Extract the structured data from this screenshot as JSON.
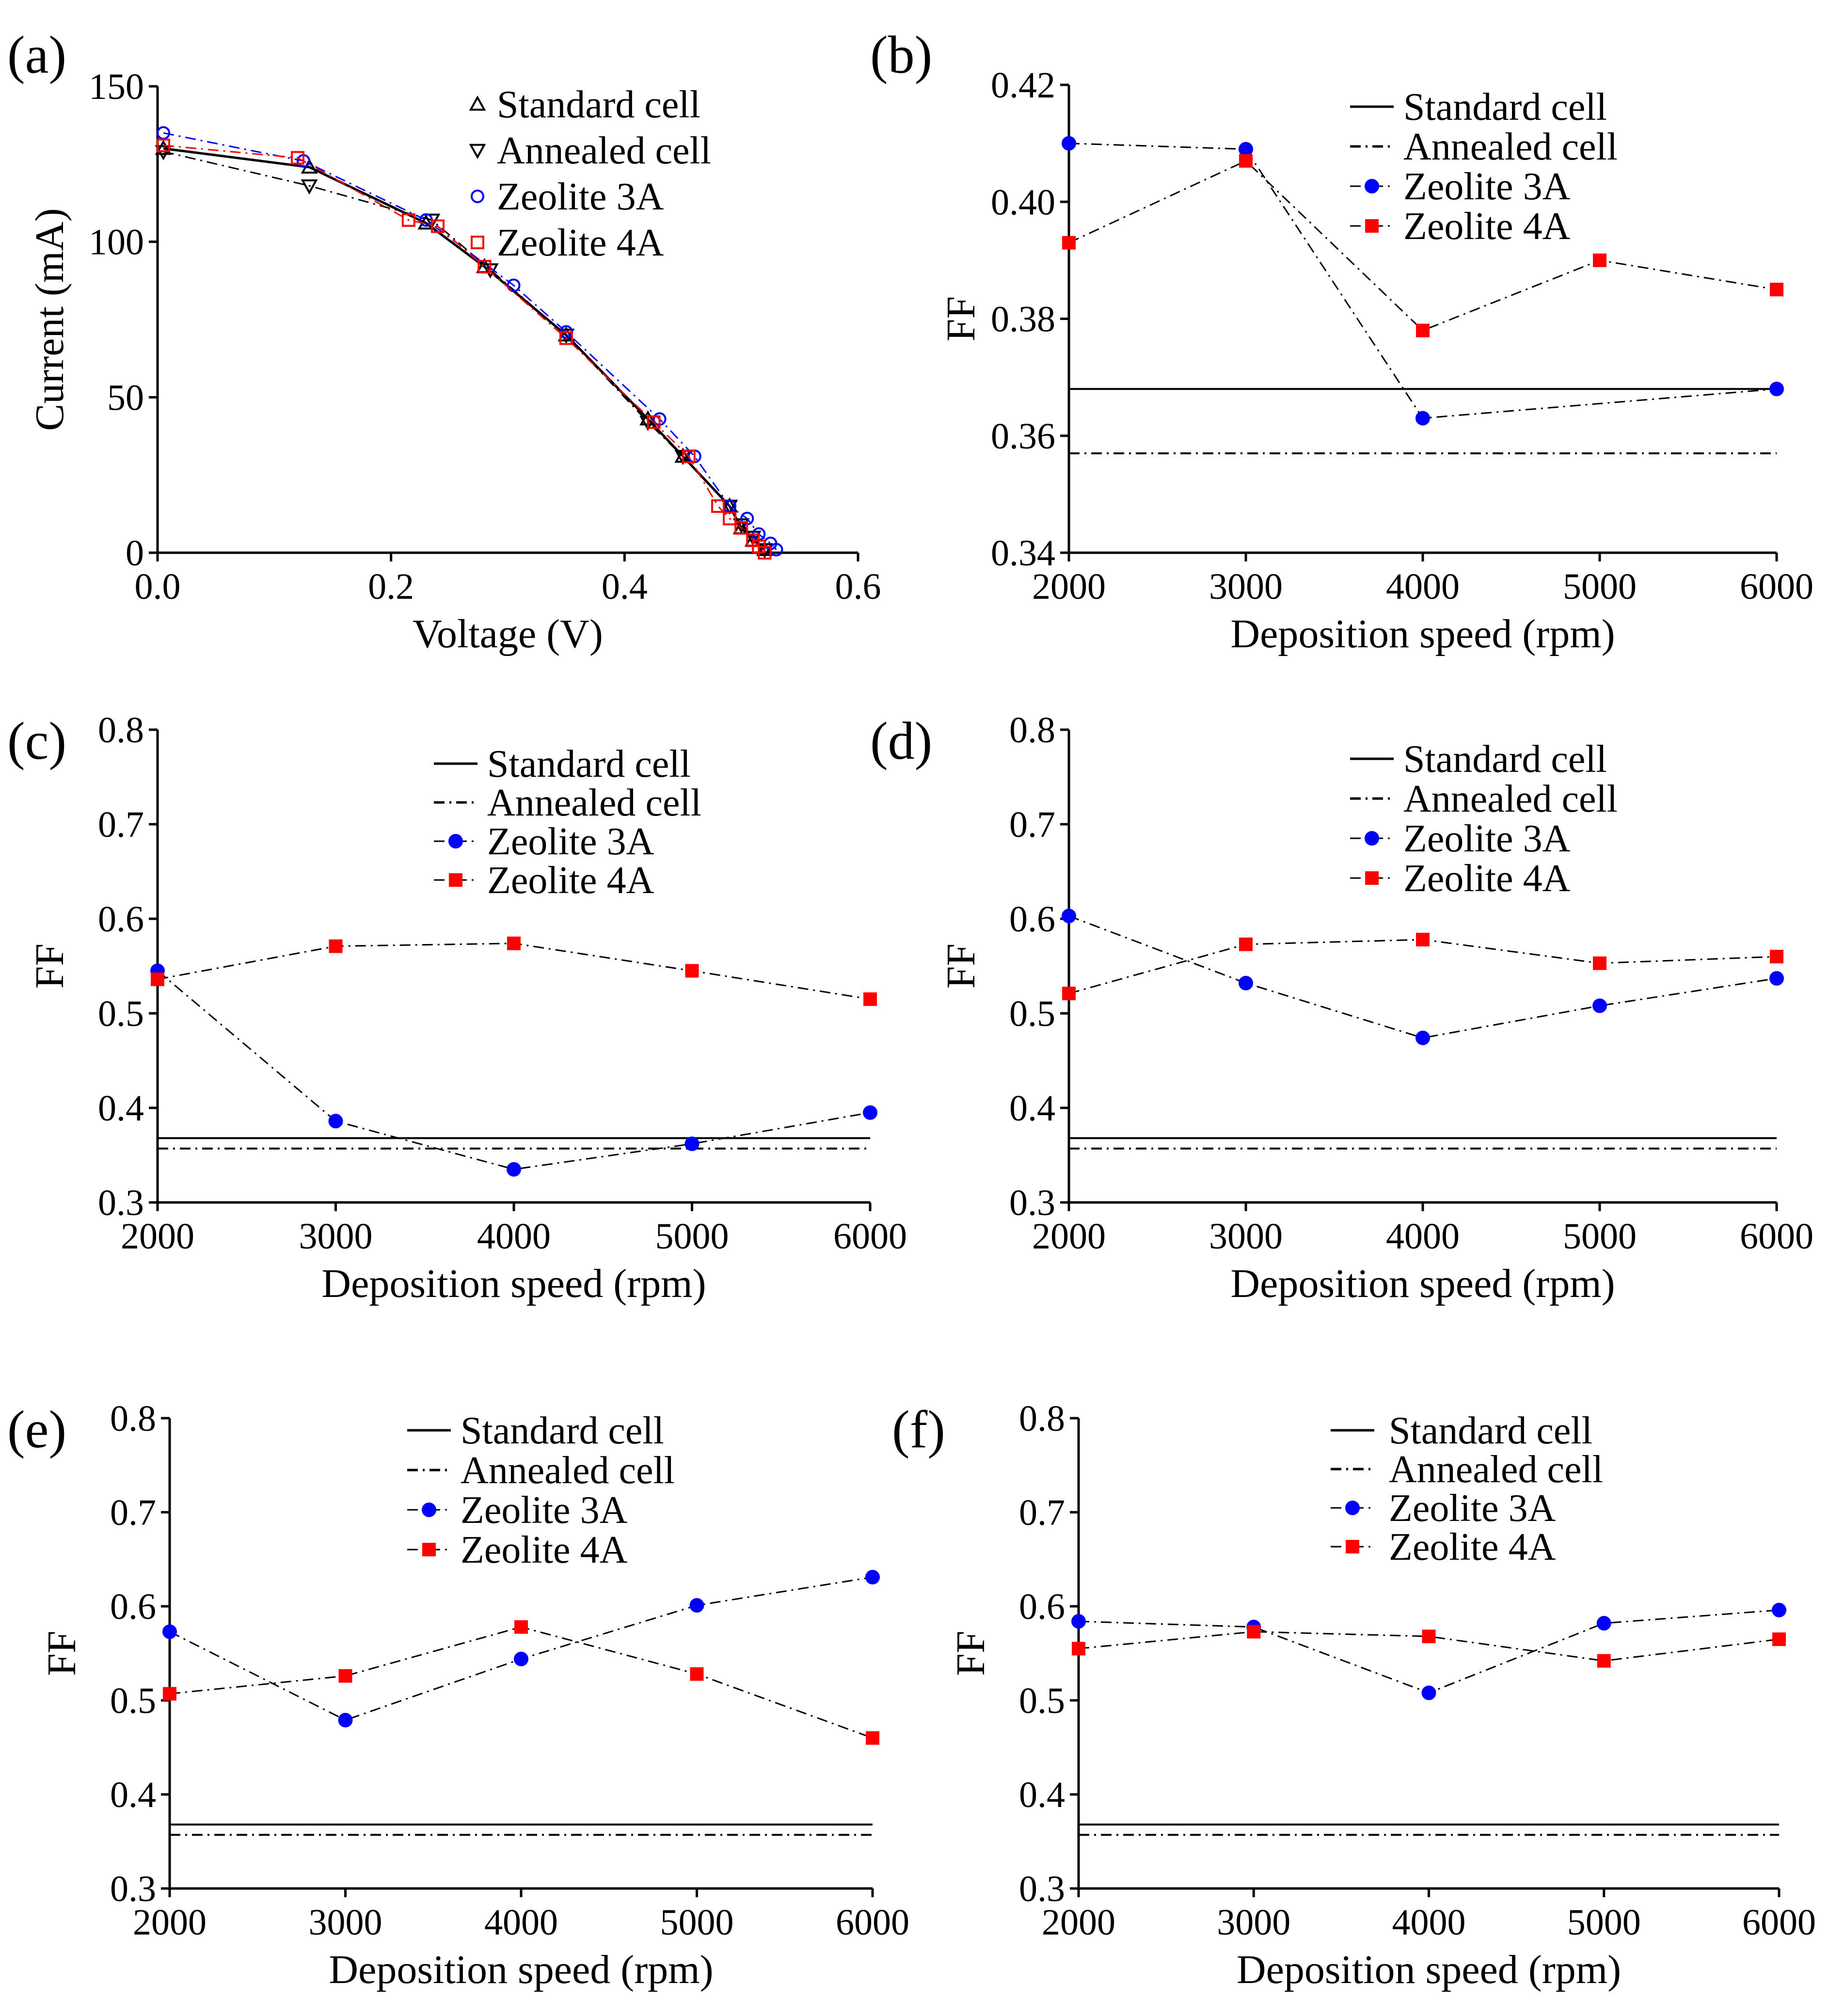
{
  "chart_data": [
    {
      "panel": "(a)",
      "type": "line",
      "xlabel": "Voltage (V)",
      "ylabel": "Current (mA)",
      "xlim": [
        0,
        0.6
      ],
      "ylim": [
        0,
        150
      ],
      "xticks": [
        0.0,
        0.2,
        0.4,
        0.6
      ],
      "xtick_labels": [
        "0.0",
        "0.2",
        "0.4",
        "0.6"
      ],
      "yticks": [
        0,
        50,
        100,
        150
      ],
      "ytick_labels": [
        "0",
        "50",
        "100",
        "150"
      ],
      "legend_position": "top-right",
      "series": [
        {
          "name": "Standard  cell",
          "marker": "up-triangle-open",
          "color": "#000000",
          "dash": "solid",
          "x": [
            0.005,
            0.13,
            0.23,
            0.28,
            0.35,
            0.42,
            0.45,
            0.49,
            0.5,
            0.51,
            0.52
          ],
          "y": [
            130,
            124,
            106,
            92,
            70,
            43,
            31,
            15,
            8,
            4,
            1
          ]
        },
        {
          "name": "Annealed cell",
          "marker": "down-triangle-open",
          "color": "#000000",
          "dash": "dashdot",
          "x": [
            0.005,
            0.13,
            0.235,
            0.285,
            0.35,
            0.42,
            0.45,
            0.49,
            0.5,
            0.51,
            0.52
          ],
          "y": [
            129,
            118,
            107,
            91,
            70,
            42,
            31,
            15,
            9,
            5,
            1
          ]
        },
        {
          "name": "Zeolite 3A",
          "marker": "circle-open",
          "color": "#0000ff",
          "dash": "dashdot",
          "x": [
            0.005,
            0.125,
            0.23,
            0.305,
            0.35,
            0.43,
            0.46,
            0.49,
            0.505,
            0.515,
            0.525,
            0.53
          ],
          "y": [
            135,
            126,
            107,
            86,
            71,
            43,
            31,
            15,
            11,
            6,
            3,
            1
          ]
        },
        {
          "name": "Zeolite 4A",
          "marker": "square-open",
          "color": "#ff0000",
          "dash": "dashdot",
          "x": [
            0.005,
            0.12,
            0.215,
            0.24,
            0.28,
            0.35,
            0.425,
            0.455,
            0.48,
            0.49,
            0.5,
            0.51,
            0.515,
            0.52
          ],
          "y": [
            131,
            127,
            107,
            105,
            92,
            69,
            42,
            31,
            15,
            11,
            8,
            4,
            2,
            0
          ]
        }
      ]
    },
    {
      "panel": "(b)",
      "type": "line",
      "xlabel": "Deposition speed (rpm)",
      "ylabel": "FF",
      "xlim": [
        2000,
        6000
      ],
      "ylim": [
        0.34,
        0.42
      ],
      "xticks": [
        2000,
        3000,
        4000,
        5000,
        6000
      ],
      "xtick_labels": [
        "2000",
        "3000",
        "4000",
        "5000",
        "6000"
      ],
      "yticks": [
        0.34,
        0.36,
        0.38,
        0.4,
        0.42
      ],
      "ytick_labels": [
        "0.34",
        "0.36",
        "0.38",
        "0.40",
        "0.42"
      ],
      "legend_position": "top-right",
      "reference_lines": [
        {
          "name": "Standard  cell",
          "y": 0.368,
          "dash": "solid",
          "color": "#000000"
        },
        {
          "name": "Annealed cell",
          "y": 0.357,
          "dash": "dashdot",
          "color": "#000000"
        }
      ],
      "series": [
        {
          "name": "Zeolite 3A",
          "marker": "circle",
          "color": "#0000ff",
          "x": [
            2000,
            3000,
            4000,
            6000
          ],
          "y": [
            0.41,
            0.409,
            0.363,
            0.368
          ]
        },
        {
          "name": "Zeolite 4A",
          "marker": "square",
          "color": "#ff0000",
          "x": [
            2000,
            3000,
            4000,
            5000,
            6000
          ],
          "y": [
            0.393,
            0.407,
            0.378,
            0.39,
            0.385
          ]
        }
      ]
    },
    {
      "panel": "(c)",
      "type": "line",
      "xlabel": "Deposition speed (rpm)",
      "ylabel": "FF",
      "xlim": [
        2000,
        6000
      ],
      "ylim": [
        0.3,
        0.8
      ],
      "xticks": [
        2000,
        3000,
        4000,
        5000,
        6000
      ],
      "xtick_labels": [
        "2000",
        "3000",
        "4000",
        "5000",
        "6000"
      ],
      "yticks": [
        0.3,
        0.4,
        0.5,
        0.6,
        0.7,
        0.8
      ],
      "ytick_labels": [
        "0.3",
        "0.4",
        "0.5",
        "0.6",
        "0.7",
        "0.8"
      ],
      "legend_position": "top-right",
      "reference_lines": [
        {
          "name": "Standard  cell",
          "y": 0.368,
          "dash": "solid",
          "color": "#000000"
        },
        {
          "name": "Annealed cell",
          "y": 0.357,
          "dash": "dashdot",
          "color": "#000000"
        }
      ],
      "series": [
        {
          "name": "Zeolite 3A",
          "marker": "circle",
          "color": "#0000ff",
          "x": [
            2000,
            3000,
            4000,
            5000,
            6000
          ],
          "y": [
            0.545,
            0.386,
            0.335,
            0.362,
            0.395
          ]
        },
        {
          "name": "Zeolite 4A",
          "marker": "square",
          "color": "#ff0000",
          "x": [
            2000,
            3000,
            4000,
            5000,
            6000
          ],
          "y": [
            0.536,
            0.571,
            0.574,
            0.545,
            0.515
          ]
        }
      ]
    },
    {
      "panel": "(d)",
      "type": "line",
      "xlabel": "Deposition speed (rpm)",
      "ylabel": "FF",
      "xlim": [
        2000,
        6000
      ],
      "ylim": [
        0.3,
        0.8
      ],
      "xticks": [
        2000,
        3000,
        4000,
        5000,
        6000
      ],
      "xtick_labels": [
        "2000",
        "3000",
        "4000",
        "5000",
        "6000"
      ],
      "yticks": [
        0.3,
        0.4,
        0.5,
        0.6,
        0.7,
        0.8
      ],
      "ytick_labels": [
        "0.3",
        "0.4",
        "0.5",
        "0.6",
        "0.7",
        "0.8"
      ],
      "legend_position": "top-right",
      "reference_lines": [
        {
          "name": "Standard  cell",
          "y": 0.368,
          "dash": "solid",
          "color": "#000000"
        },
        {
          "name": "Annealed cell",
          "y": 0.357,
          "dash": "dashdot",
          "color": "#000000"
        }
      ],
      "series": [
        {
          "name": "Zeolite 3A",
          "marker": "circle",
          "color": "#0000ff",
          "x": [
            2000,
            3000,
            4000,
            5000,
            6000
          ],
          "y": [
            0.603,
            0.532,
            0.474,
            0.508,
            0.537
          ]
        },
        {
          "name": "Zeolite 4A",
          "marker": "square",
          "color": "#ff0000",
          "x": [
            2000,
            3000,
            4000,
            5000,
            6000
          ],
          "y": [
            0.521,
            0.573,
            0.578,
            0.553,
            0.56
          ]
        }
      ]
    },
    {
      "panel": "(e)",
      "type": "line",
      "xlabel": "Deposition speed (rpm)",
      "ylabel": "FF",
      "xlim": [
        2000,
        6000
      ],
      "ylim": [
        0.3,
        0.8
      ],
      "xticks": [
        2000,
        3000,
        4000,
        5000,
        6000
      ],
      "xtick_labels": [
        "2000",
        "3000",
        "4000",
        "5000",
        "6000"
      ],
      "yticks": [
        0.3,
        0.4,
        0.5,
        0.6,
        0.7,
        0.8
      ],
      "ytick_labels": [
        "0.3",
        "0.4",
        "0.5",
        "0.6",
        "0.7",
        "0.8"
      ],
      "legend_position": "top-right",
      "reference_lines": [
        {
          "name": "Standard  cell",
          "y": 0.368,
          "dash": "solid",
          "color": "#000000"
        },
        {
          "name": "Annealed cell",
          "y": 0.357,
          "dash": "dashdot",
          "color": "#000000"
        }
      ],
      "series": [
        {
          "name": "Zeolite 3A",
          "marker": "circle",
          "color": "#0000ff",
          "x": [
            2000,
            3000,
            4000,
            5000,
            6000
          ],
          "y": [
            0.573,
            0.479,
            0.544,
            0.601,
            0.631
          ]
        },
        {
          "name": "Zeolite 4A",
          "marker": "square",
          "color": "#ff0000",
          "x": [
            2000,
            3000,
            4000,
            5000,
            6000
          ],
          "y": [
            0.507,
            0.526,
            0.578,
            0.528,
            0.46
          ]
        }
      ]
    },
    {
      "panel": "(f)",
      "type": "line",
      "xlabel": "Deposition speed (rpm)",
      "ylabel": "FF",
      "xlim": [
        2000,
        6000
      ],
      "ylim": [
        0.3,
        0.8
      ],
      "xticks": [
        2000,
        3000,
        4000,
        5000,
        6000
      ],
      "xtick_labels": [
        "2000",
        "3000",
        "4000",
        "5000",
        "6000"
      ],
      "yticks": [
        0.3,
        0.4,
        0.5,
        0.6,
        0.7,
        0.8
      ],
      "ytick_labels": [
        "0.3",
        "0.4",
        "0.5",
        "0.6",
        "0.7",
        "0.8"
      ],
      "legend_position": "top-right",
      "reference_lines": [
        {
          "name": "Standard  cell",
          "y": 0.368,
          "dash": "solid",
          "color": "#000000"
        },
        {
          "name": "Annealed cell",
          "y": 0.357,
          "dash": "dashdot",
          "color": "#000000"
        }
      ],
      "series": [
        {
          "name": "Zeolite 3A",
          "marker": "circle",
          "color": "#0000ff",
          "x": [
            2000,
            3000,
            4000,
            5000,
            6000
          ],
          "y": [
            0.584,
            0.578,
            0.508,
            0.582,
            0.596
          ]
        },
        {
          "name": "Zeolite 4A",
          "marker": "square",
          "color": "#ff0000",
          "x": [
            2000,
            3000,
            4000,
            5000,
            6000
          ],
          "y": [
            0.555,
            0.573,
            0.568,
            0.542,
            0.565
          ]
        }
      ]
    }
  ]
}
